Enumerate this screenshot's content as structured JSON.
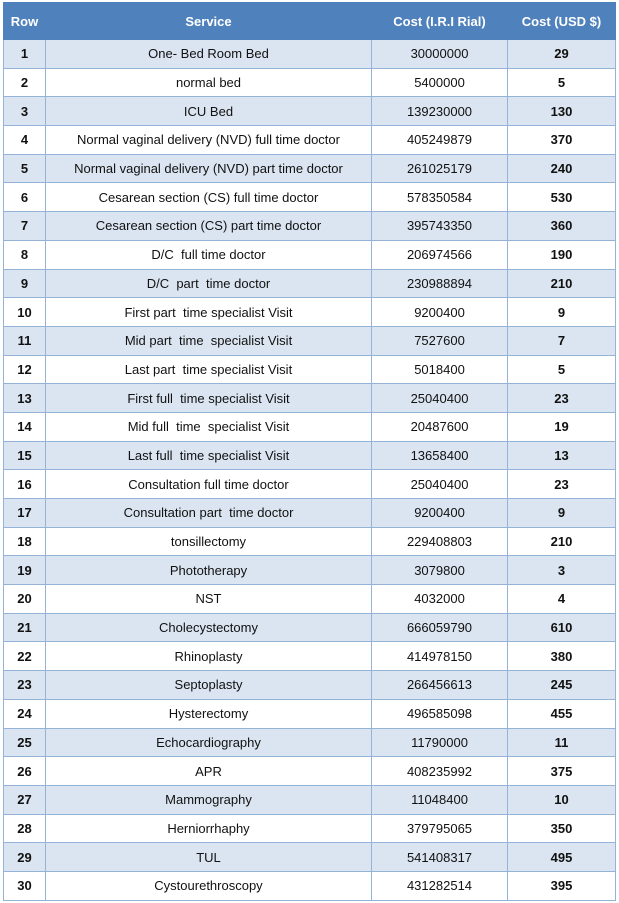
{
  "table": {
    "header": [
      "Row",
      "Service",
      "Cost (I.R.I Rial)",
      "Cost (USD $)"
    ],
    "rows": [
      [
        1,
        "One- Bed Room Bed",
        30000000,
        29
      ],
      [
        2,
        "normal bed",
        5400000,
        5
      ],
      [
        3,
        "ICU Bed",
        139230000,
        130
      ],
      [
        4,
        "Normal vaginal delivery (NVD) full time doctor",
        405249879,
        370
      ],
      [
        5,
        "Normal vaginal delivery (NVD) part time doctor",
        261025179,
        240
      ],
      [
        6,
        "Cesarean section (CS) full time doctor",
        578350584,
        530
      ],
      [
        7,
        "Cesarean section (CS) part time doctor",
        395743350,
        360
      ],
      [
        8,
        "D/C  full time doctor",
        206974566,
        190
      ],
      [
        9,
        "D/C  part  time doctor",
        230988894,
        210
      ],
      [
        10,
        "First part  time specialist Visit",
        9200400,
        9
      ],
      [
        11,
        "Mid part  time  specialist Visit",
        7527600,
        7
      ],
      [
        12,
        "Last part  time specialist Visit",
        5018400,
        5
      ],
      [
        13,
        "First full  time specialist Visit",
        25040400,
        23
      ],
      [
        14,
        "Mid full  time  specialist Visit",
        20487600,
        19
      ],
      [
        15,
        "Last full  time specialist Visit",
        13658400,
        13
      ],
      [
        16,
        "Consultation full time doctor",
        25040400,
        23
      ],
      [
        17,
        "Consultation part  time doctor",
        9200400,
        9
      ],
      [
        18,
        "tonsillectomy",
        229408803,
        210
      ],
      [
        19,
        "Phototherapy",
        3079800,
        3
      ],
      [
        20,
        "NST",
        4032000,
        4
      ],
      [
        21,
        "Cholecystectomy",
        666059790,
        610
      ],
      [
        22,
        "Rhinoplasty",
        414978150,
        380
      ],
      [
        23,
        "Septoplasty",
        266456613,
        245
      ],
      [
        24,
        "Hysterectomy",
        496585098,
        455
      ],
      [
        25,
        "Echocardiography",
        11790000,
        11
      ],
      [
        26,
        "APR",
        408235992,
        375
      ],
      [
        27,
        "Mammography",
        11048400,
        10
      ],
      [
        28,
        "Herniorrhaphy",
        379795065,
        350
      ],
      [
        29,
        "TUL",
        541408317,
        495
      ],
      [
        30,
        "Cystourethroscopy",
        431282514,
        395
      ]
    ]
  }
}
